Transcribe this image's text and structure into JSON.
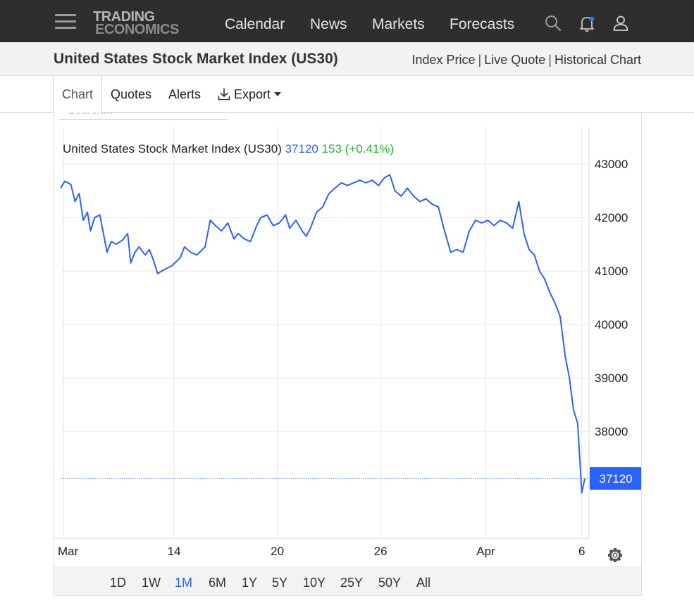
{
  "header": {
    "logo_line1": "TRADING",
    "logo_line2": "ECONOMICS",
    "nav": [
      "Calendar",
      "News",
      "Markets",
      "Forecasts"
    ]
  },
  "subheader": {
    "title": "United States Stock Market Index (US30)",
    "links": [
      "Index Price",
      "Live Quote",
      "Historical Chart"
    ]
  },
  "tabs": {
    "chart": "Chart",
    "quotes": "Quotes",
    "alerts": "Alerts",
    "export": "Export"
  },
  "toolbar": {
    "search_placeholder": "Search..."
  },
  "quote": {
    "name": "United States Stock Market Index (US30)",
    "price": "37120",
    "change": "153 (+0.41%)"
  },
  "ranges": [
    "1D",
    "1W",
    "1M",
    "6M",
    "1Y",
    "5Y",
    "10Y",
    "25Y",
    "50Y",
    "All"
  ],
  "selected_range": "1M",
  "colors": {
    "line": "#2962ff",
    "change_up": "#21b52e",
    "price_text": "#2962ff",
    "topbar": "#2e2e2e"
  },
  "icons": [
    "menu-icon",
    "search-icon",
    "bell-icon",
    "user-icon",
    "download-icon",
    "gear-icon"
  ],
  "chart_data": {
    "type": "line",
    "title": "United States Stock Market Index (US30)",
    "ylim": [
      36000,
      43700
    ],
    "y_ticks": [
      43000,
      42000,
      41000,
      40000,
      39000,
      38000
    ],
    "x_tick_labels": [
      {
        "label": "Mar",
        "x": 0.3
      },
      {
        "label": "14",
        "x": 11.0
      },
      {
        "label": "20",
        "x": 21.0
      },
      {
        "label": "26",
        "x": 31.0
      },
      {
        "label": "Apr",
        "x": 41.2
      },
      {
        "label": "6",
        "x": 50.5
      }
    ],
    "last_price": 37120,
    "last_price_label": "37120",
    "grid": true,
    "series": [
      {
        "values": [
          [
            0.0,
            42550
          ],
          [
            0.4,
            42680
          ],
          [
            1.0,
            42620
          ],
          [
            1.4,
            42300
          ],
          [
            1.8,
            42450
          ],
          [
            2.2,
            41950
          ],
          [
            2.6,
            42100
          ],
          [
            2.9,
            41750
          ],
          [
            3.3,
            42000
          ],
          [
            3.8,
            42050
          ],
          [
            4.2,
            41650
          ],
          [
            4.5,
            41350
          ],
          [
            4.9,
            41550
          ],
          [
            5.4,
            41500
          ],
          [
            6.0,
            41580
          ],
          [
            6.5,
            41700
          ],
          [
            6.8,
            41150
          ],
          [
            7.2,
            41350
          ],
          [
            7.6,
            41450
          ],
          [
            8.2,
            41300
          ],
          [
            8.6,
            41400
          ],
          [
            9.0,
            41200
          ],
          [
            9.4,
            40950
          ],
          [
            9.8,
            41000
          ],
          [
            10.3,
            41050
          ],
          [
            10.8,
            41100
          ],
          [
            11.6,
            41250
          ],
          [
            12.0,
            41450
          ],
          [
            12.6,
            41350
          ],
          [
            13.2,
            41300
          ],
          [
            14.0,
            41450
          ],
          [
            14.5,
            41950
          ],
          [
            15.0,
            41850
          ],
          [
            15.6,
            41750
          ],
          [
            16.2,
            41900
          ],
          [
            16.8,
            41600
          ],
          [
            17.2,
            41700
          ],
          [
            17.8,
            41600
          ],
          [
            18.4,
            41550
          ],
          [
            19.0,
            41850
          ],
          [
            19.4,
            42000
          ],
          [
            20.0,
            42050
          ],
          [
            20.6,
            41850
          ],
          [
            21.2,
            41900
          ],
          [
            21.8,
            42050
          ],
          [
            22.2,
            41800
          ],
          [
            22.8,
            41950
          ],
          [
            23.4,
            41750
          ],
          [
            23.8,
            41650
          ],
          [
            24.2,
            41800
          ],
          [
            24.8,
            42100
          ],
          [
            25.4,
            42200
          ],
          [
            26.0,
            42450
          ],
          [
            26.6,
            42550
          ],
          [
            27.2,
            42650
          ],
          [
            27.8,
            42600
          ],
          [
            28.4,
            42650
          ],
          [
            29.0,
            42700
          ],
          [
            29.6,
            42650
          ],
          [
            30.2,
            42700
          ],
          [
            30.8,
            42600
          ],
          [
            31.4,
            42750
          ],
          [
            31.9,
            42800
          ],
          [
            32.4,
            42500
          ],
          [
            33.0,
            42400
          ],
          [
            33.6,
            42550
          ],
          [
            34.2,
            42400
          ],
          [
            34.8,
            42300
          ],
          [
            35.4,
            42350
          ],
          [
            36.0,
            42250
          ],
          [
            36.6,
            42200
          ],
          [
            37.2,
            41750
          ],
          [
            37.8,
            41350
          ],
          [
            38.4,
            41400
          ],
          [
            39.0,
            41350
          ],
          [
            39.6,
            41750
          ],
          [
            40.2,
            41950
          ],
          [
            40.8,
            41900
          ],
          [
            41.4,
            41950
          ],
          [
            42.0,
            41850
          ],
          [
            42.6,
            41950
          ],
          [
            43.2,
            41900
          ],
          [
            43.8,
            41800
          ],
          [
            44.4,
            42300
          ],
          [
            44.9,
            41700
          ],
          [
            45.4,
            41400
          ],
          [
            45.9,
            41300
          ],
          [
            46.4,
            41000
          ],
          [
            46.9,
            40850
          ],
          [
            47.4,
            40600
          ],
          [
            47.9,
            40400
          ],
          [
            48.4,
            40150
          ],
          [
            48.9,
            39400
          ],
          [
            49.3,
            39000
          ],
          [
            49.7,
            38400
          ],
          [
            50.1,
            38150
          ],
          [
            50.3,
            37500
          ],
          [
            50.5,
            36850
          ],
          [
            50.8,
            37120
          ]
        ]
      }
    ]
  }
}
